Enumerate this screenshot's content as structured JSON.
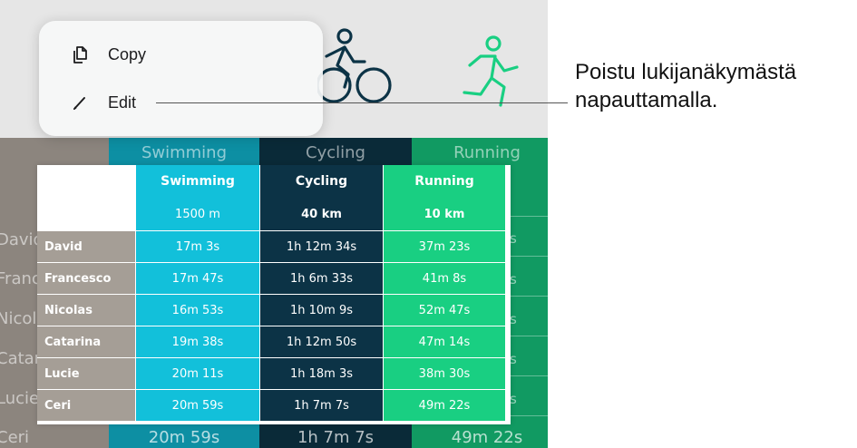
{
  "menu": {
    "items": [
      {
        "label": "Copy",
        "icon": "copy-icon"
      },
      {
        "label": "Edit",
        "icon": "pencil-icon"
      }
    ]
  },
  "callout": {
    "line1": "Poistu lukijanäkymästä",
    "line2": "napauttamalla."
  },
  "background": {
    "headers": [
      "Swimming",
      "Cycling",
      "Running"
    ],
    "names": [
      "David",
      "Franc",
      "Nicola",
      "Catar",
      "Lucie",
      "Ceri"
    ],
    "footer": [
      "20m 59s",
      "1h 7m 7s",
      "49m 22s"
    ],
    "right_ghosts": [
      "s",
      "s",
      "s",
      "s",
      "s",
      "s"
    ]
  },
  "table": {
    "headers": [
      "Swimming",
      "Cycling",
      "Running"
    ],
    "distances": [
      "1500 m",
      "40 km",
      "10 km"
    ],
    "rows": [
      {
        "name": "David",
        "swim": "17m 3s",
        "cycle": "1h 12m 34s",
        "run": "37m 23s"
      },
      {
        "name": "Francesco",
        "swim": "17m 47s",
        "cycle": "1h 6m 33s",
        "run": "41m 8s"
      },
      {
        "name": "Nicolas",
        "swim": "16m 53s",
        "cycle": "1h 10m 9s",
        "run": "52m 47s"
      },
      {
        "name": "Catarina",
        "swim": "19m 38s",
        "cycle": "1h 12m 50s",
        "run": "47m 14s"
      },
      {
        "name": "Lucie",
        "swim": "20m 11s",
        "cycle": "1h 18m 3s",
        "run": "38m 30s"
      },
      {
        "name": "Ceri",
        "swim": "20m 59s",
        "cycle": "1h 7m 7s",
        "run": "49m 22s"
      }
    ]
  },
  "colors": {
    "name_col": "#a59e96",
    "swim": "#12c0da",
    "cycle": "#0c3346",
    "run": "#19cf82",
    "bg_swim": "#0d8fa3",
    "bg_cycle": "#0a2a38",
    "bg_run": "#119a62"
  }
}
